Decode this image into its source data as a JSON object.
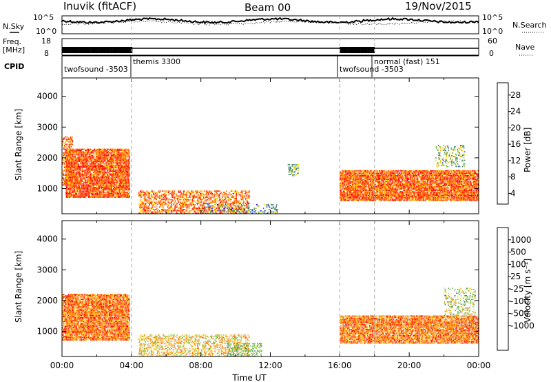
{
  "header": {
    "station": "Inuvik (fitACF)",
    "beam": "Beam 00",
    "date": "19/Nov/2015"
  },
  "strip": {
    "nsky_label": "N.Sky",
    "nsky_ticks": [
      "10^5",
      "10^0"
    ],
    "nsearch_label": "N.Search",
    "nsearch_ticks": [
      "10^5",
      "10^0"
    ],
    "freq_label_1": "Freq.",
    "freq_label_2": "[MHz]",
    "freq_ticks": [
      "18",
      "8"
    ],
    "nave_label": "Nave",
    "nave_ticks": [
      "60",
      "0"
    ],
    "cpid_label": "CPID",
    "cpid_segments": [
      {
        "label": "twofsound -3503",
        "start_h": 0,
        "end_h": 4
      },
      {
        "label": "themis 3300",
        "start_h": 4,
        "end_h": 16
      },
      {
        "label": "twofsound -3503",
        "start_h": 16,
        "end_h": 18
      },
      {
        "label": "normal (fast) 151",
        "start_h": 18,
        "end_h": 24
      }
    ]
  },
  "chart_data": [
    {
      "type": "heatmap",
      "name": "power",
      "ylabel": "Slant Range [km]",
      "xlabel": "",
      "xlim": [
        0,
        24
      ],
      "ylim": [
        180,
        4600
      ],
      "yticks": [
        "1000",
        "2000",
        "3000",
        "4000"
      ],
      "colorbar": {
        "label": "Power [dB]",
        "ticks": [
          "4",
          "8",
          "12",
          "16",
          "20",
          "24",
          "28"
        ],
        "colors": [
          "#0000ff",
          "#2050c8",
          "#3c8a64",
          "#50a050",
          "#a0d040",
          "#ffd800",
          "#ffa000",
          "#ff6000",
          "#ff2800",
          "#ff0000"
        ]
      },
      "regions": [
        {
          "x": [
            0.2,
            3.9
          ],
          "y": [
            700,
            2300
          ],
          "level": 0.8,
          "density": 1.0
        },
        {
          "x": [
            0.0,
            0.6
          ],
          "y": [
            1100,
            2700
          ],
          "level": 0.75,
          "density": 0.6
        },
        {
          "x": [
            4.4,
            10.8
          ],
          "y": [
            180,
            950
          ],
          "level": 0.75,
          "density": 0.55
        },
        {
          "x": [
            8.0,
            12.5
          ],
          "y": [
            180,
            500
          ],
          "level": 0.3,
          "density": 0.25
        },
        {
          "x": [
            13.0,
            13.6
          ],
          "y": [
            1400,
            1800
          ],
          "level": 0.35,
          "density": 0.5
        },
        {
          "x": [
            16.0,
            24.0
          ],
          "y": [
            600,
            1600
          ],
          "level": 0.78,
          "density": 1.0
        },
        {
          "x": [
            21.5,
            23.2
          ],
          "y": [
            1700,
            2400
          ],
          "level": 0.4,
          "density": 0.3
        }
      ]
    },
    {
      "type": "heatmap",
      "name": "velocity",
      "ylabel": "Slant Range [km]",
      "xlabel": "Time UT",
      "xlim": [
        0,
        24
      ],
      "ylim": [
        180,
        4600
      ],
      "yticks": [
        "1000",
        "2000",
        "3000",
        "4000"
      ],
      "xticks": [
        "00:00",
        "04:00",
        "08:00",
        "12:00",
        "16:00",
        "20:00",
        "00:00"
      ],
      "colorbar": {
        "label": "Velocity [m s⁻¹]",
        "ticks": [
          "1000",
          "500",
          "100",
          "25",
          "-25",
          "-100",
          "-500",
          "-1000"
        ],
        "colors": [
          "#2040c0",
          "#3c8c64",
          "#5aaa46",
          "#78d044",
          "#c8c8c8",
          "#ffd040",
          "#ffa800",
          "#ff7000",
          "#ff4000",
          "#ff0000"
        ]
      },
      "regions": [
        {
          "x": [
            0.0,
            3.9
          ],
          "y": [
            700,
            2200
          ],
          "level": 0.75,
          "density": 1.0
        },
        {
          "x": [
            4.4,
            10.8
          ],
          "y": [
            180,
            900
          ],
          "level": 0.55,
          "density": 0.5
        },
        {
          "x": [
            9.5,
            11.5
          ],
          "y": [
            180,
            600
          ],
          "level": 0.35,
          "density": 0.45
        },
        {
          "x": [
            16.0,
            24.0
          ],
          "y": [
            600,
            1500
          ],
          "level": 0.72,
          "density": 1.0
        },
        {
          "x": [
            22.0,
            23.8
          ],
          "y": [
            1500,
            2400
          ],
          "level": 0.4,
          "density": 0.3
        }
      ]
    }
  ],
  "colors": {
    "dashed_line": "#aaaaaa",
    "frame": "#000000"
  }
}
